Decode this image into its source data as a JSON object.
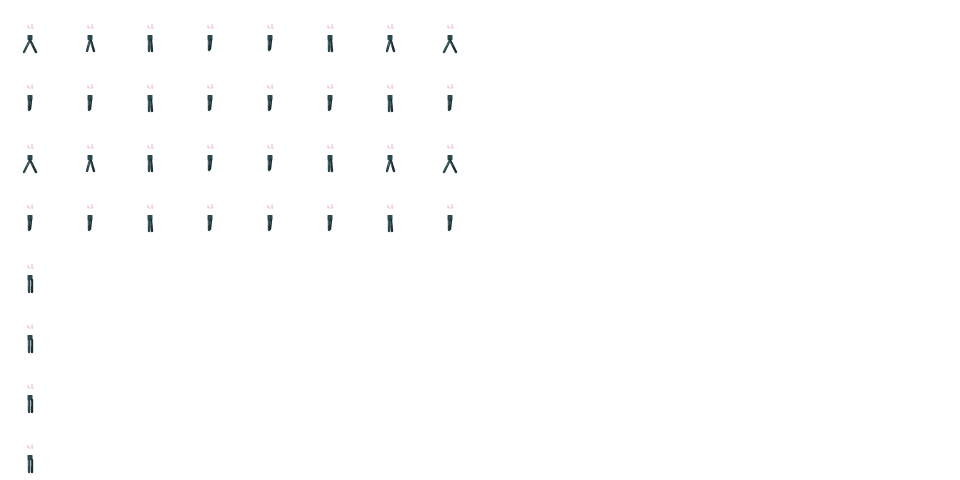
{
  "sprite_sheet": {
    "colors": {
      "background": "#ffffff",
      "feet": "#e8a7a7",
      "pants": "#2f4a4e",
      "pants_shadow": "#1c2e31",
      "pants_highlight": "#6f8f93"
    },
    "rows": [
      {
        "name": "walk-down-legs",
        "frames": 8,
        "poses": [
          "stride",
          "step",
          "pass",
          "narrow",
          "narrow",
          "pass",
          "step",
          "stride"
        ]
      },
      {
        "name": "idle-down-legs",
        "frames": 8,
        "poses": [
          "narrow",
          "narrow",
          "pass",
          "narrow",
          "narrow",
          "narrow",
          "pass",
          "narrow"
        ]
      },
      {
        "name": "walk-side-legs",
        "frames": 8,
        "poses": [
          "stride",
          "step",
          "pass",
          "narrow",
          "narrow",
          "pass",
          "step",
          "stride"
        ]
      },
      {
        "name": "idle-side-legs",
        "frames": 8,
        "poses": [
          "narrow",
          "narrow",
          "pass",
          "narrow",
          "narrow",
          "narrow",
          "pass",
          "narrow"
        ]
      },
      {
        "name": "stand-legs-1",
        "frames": 1,
        "poses": [
          "stand"
        ]
      },
      {
        "name": "stand-legs-2",
        "frames": 1,
        "poses": [
          "stand"
        ]
      },
      {
        "name": "stand-legs-3",
        "frames": 1,
        "poses": [
          "stand"
        ]
      },
      {
        "name": "stand-legs-4",
        "frames": 1,
        "poses": [
          "stand"
        ]
      }
    ]
  }
}
